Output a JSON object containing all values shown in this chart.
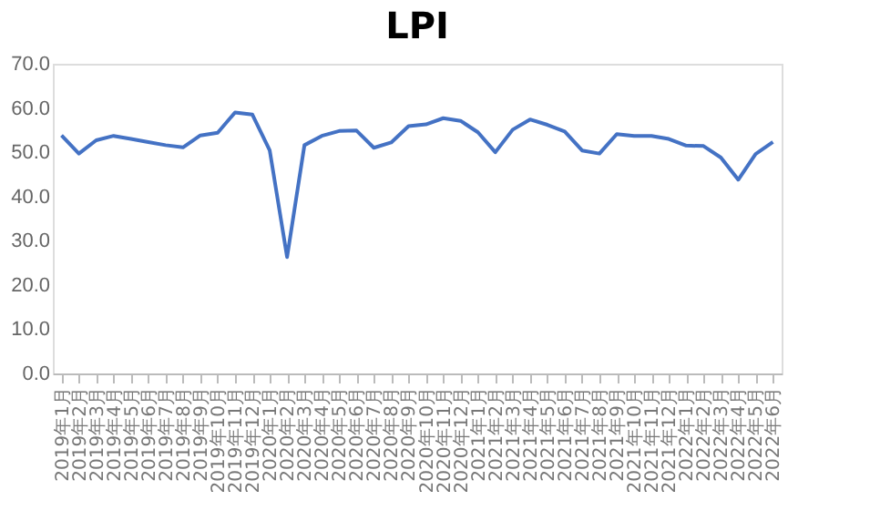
{
  "chart_data": {
    "type": "line",
    "title": "LPI",
    "categories": [
      "2019年1月",
      "2019年2月",
      "2019年3月",
      "2019年4月",
      "2019年5月",
      "2019年6月",
      "2019年7月",
      "2019年8月",
      "2019年9月",
      "2019年10月",
      "2019年11月",
      "2019年12月",
      "2020年1月",
      "2020年2月",
      "2020年3月",
      "2020年4月",
      "2020年5月",
      "2020年6月",
      "2020年7月",
      "2020年8月",
      "2020年9月",
      "2020年10月",
      "2020年11月",
      "2020年12月",
      "2021年1月",
      "2021年2月",
      "2021年3月",
      "2021年4月",
      "2021年5月",
      "2021年6月",
      "2021年7月",
      "2021年8月",
      "2021年9月",
      "2021年10月",
      "2021年11月",
      "2021年12月",
      "2022年1月",
      "2022年2月",
      "2022年3月",
      "2022年4月",
      "2022年5月",
      "2022年6月"
    ],
    "series": [
      {
        "color": "#4472c4",
        "values": [
          53.8,
          49.7,
          52.7,
          53.7,
          53.0,
          52.3,
          51.6,
          51.1,
          53.8,
          54.4,
          59.0,
          58.5,
          50.4,
          26.3,
          51.6,
          53.7,
          54.8,
          54.9,
          51.0,
          52.2,
          55.9,
          56.3,
          57.7,
          57.1,
          54.5,
          50.0,
          55.1,
          57.4,
          56.2,
          54.7,
          50.4,
          49.7,
          54.1,
          53.7,
          53.7,
          53.0,
          51.5,
          51.4,
          48.8,
          43.8,
          49.6,
          52.3
        ]
      }
    ],
    "ylim": [
      0,
      70
    ],
    "yticks": [
      {
        "value": 0,
        "label": "0.0"
      },
      {
        "value": 10,
        "label": "10.0"
      },
      {
        "value": 20,
        "label": "20.0"
      },
      {
        "value": 30,
        "label": "30.0"
      },
      {
        "value": 40,
        "label": "40.0"
      },
      {
        "value": 50,
        "label": "50.0"
      },
      {
        "value": 60,
        "label": "60.0"
      },
      {
        "value": 70,
        "label": "70.0"
      }
    ],
    "grid": false,
    "legend": false,
    "marker": "none",
    "line_style": "solid"
  }
}
